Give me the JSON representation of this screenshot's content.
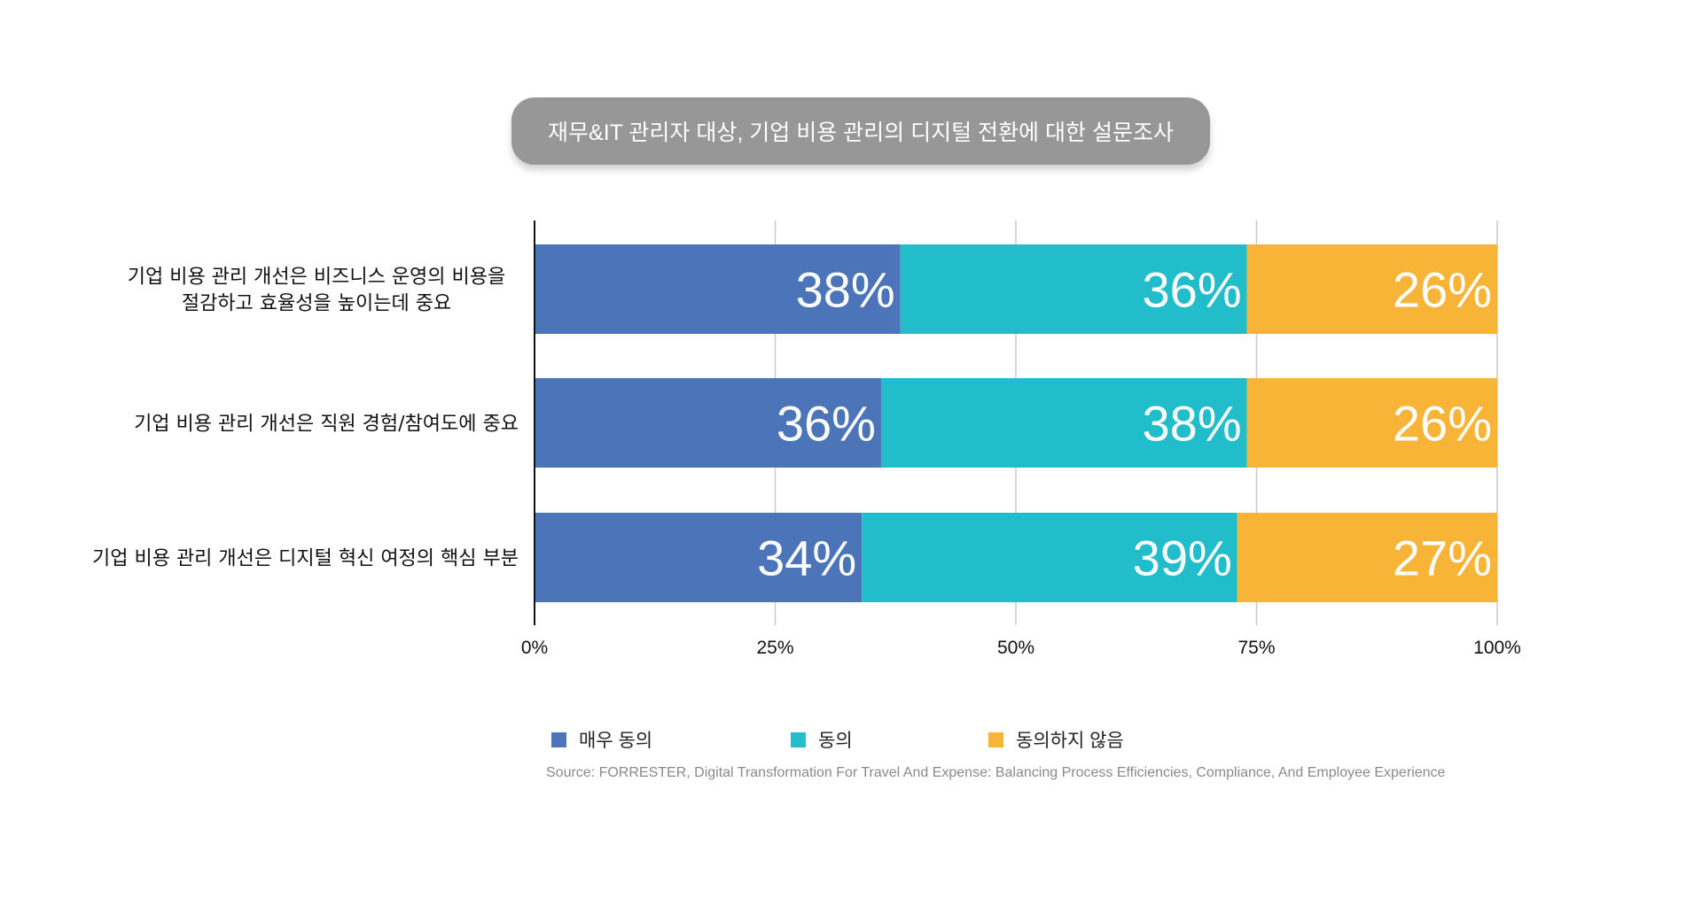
{
  "chart_data": {
    "type": "bar",
    "orientation": "horizontal",
    "stacked": true,
    "title": "재무&IT 관리자 대상, 기업 비용 관리의 디지털 전환에 대한 설문조사",
    "categories": [
      [
        "기업 비용 관리 개선은 비즈니스 운영의 비용을",
        "절감하고 효율성을 높이는데 중요"
      ],
      [
        "기업 비용 관리 개선은 직원 경험/참여도에 중요"
      ],
      [
        "기업 비용 관리 개선은 디지털 혁신 여정의 핵심 부분"
      ]
    ],
    "series": [
      {
        "name": "매우 동의",
        "color": "#4c74b8",
        "values": [
          38,
          36,
          34
        ]
      },
      {
        "name": "동의",
        "color": "#22bdcb",
        "values": [
          36,
          38,
          39
        ]
      },
      {
        "name": "동의하지 않음",
        "color": "#f8b437",
        "values": [
          26,
          26,
          27
        ]
      }
    ],
    "xlim": [
      0,
      100
    ],
    "xticks": [
      "0%",
      "25%",
      "50%",
      "75%",
      "100%"
    ],
    "grid": true,
    "legend": "bottom",
    "source": "Source: FORRESTER, Digital Transformation For Travel And Expense: Balancing Process Efficiencies, Compliance, And Employee Experience"
  }
}
